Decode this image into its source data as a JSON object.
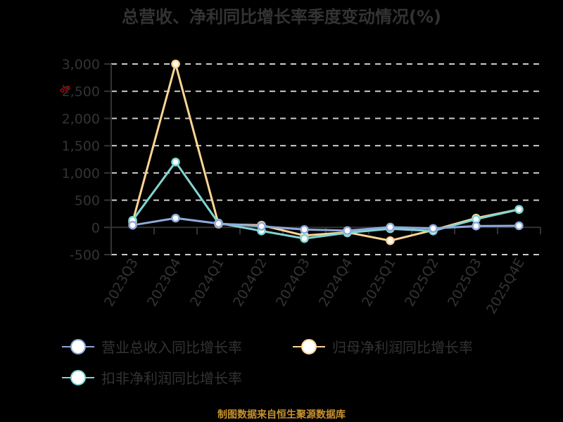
{
  "title": "总营收、净利同比增长率季度变动情况(%)",
  "unit_label": "%",
  "source": "制图数据来自恒生聚源数据库",
  "colors": {
    "revenue": "#8eaadc",
    "net_profit": "#fdd596",
    "deducted_profit": "#7fd6d4",
    "grid": "#cccccc",
    "axis": "#333333",
    "source": "#c8922e"
  },
  "legend": [
    {
      "label": "营业总收入同比增长率",
      "color": "#8eaadc"
    },
    {
      "label": "归母净利润同比增长率",
      "color": "#fdd596"
    },
    {
      "label": "扣非净利润同比增长率",
      "color": "#7fd6d4"
    }
  ],
  "y_ticks": [
    "3,000",
    "2,500",
    "2,000",
    "1,500",
    "1,000",
    "500",
    "0",
    "-500"
  ],
  "chart_data": {
    "type": "line",
    "title": "总营收、净利同比增长率季度变动情况(%)",
    "xlabel": "",
    "ylabel": "%",
    "ylim": [
      -500,
      3000
    ],
    "grid": true,
    "legend_position": "bottom",
    "categories": [
      "2023Q3",
      "2023Q4",
      "2024Q1",
      "2024Q2",
      "2024Q3",
      "2024Q4",
      "2025Q1",
      "2025Q2",
      "2025Q3",
      "2025Q4E"
    ],
    "series": [
      {
        "name": "营业总收入同比增长率",
        "values": [
          40,
          170,
          70,
          20,
          -40,
          -60,
          5,
          -20,
          25,
          30
        ]
      },
      {
        "name": "归母净利润同比增长率",
        "values": [
          100,
          3000,
          60,
          40,
          -150,
          -90,
          -245,
          -50,
          170,
          330
        ]
      },
      {
        "name": "扣非净利润同比增长率",
        "values": [
          130,
          1200,
          80,
          -65,
          -205,
          -100,
          -25,
          -65,
          150,
          330
        ]
      }
    ]
  }
}
